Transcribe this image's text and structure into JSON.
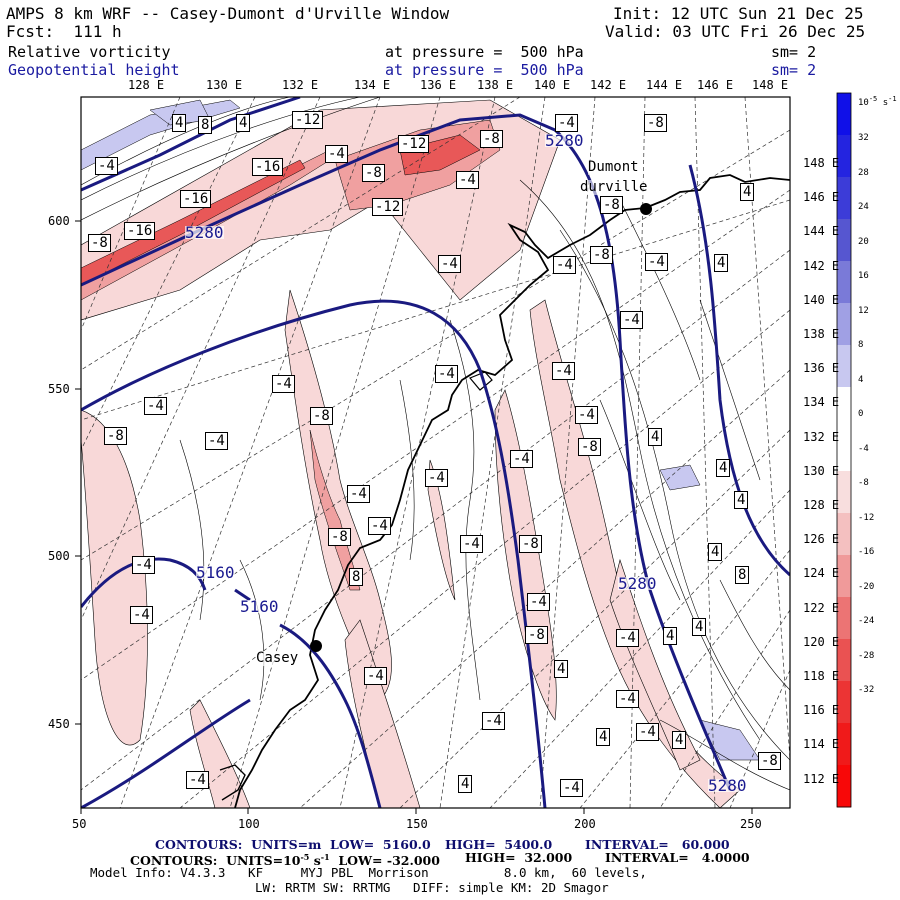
{
  "header": {
    "title": "AMPS 8 km WRF -- Casey-Dumont d'Urville Window",
    "init": "Init: 12 UTC Sun 21 Dec 25",
    "forecast": "Fcst:  111 h",
    "valid": "Valid: 03 UTC Fri 26 Dec 25",
    "field1": {
      "name": "Relative vorticity",
      "level": "at pressure =  500 hPa",
      "smoothing": "sm= 2"
    },
    "field2": {
      "name": "Geopotential height",
      "level": "at pressure =  500 hPa",
      "smoothing": "sm= 2"
    }
  },
  "map": {
    "lon_labels_top": [
      "128 E",
      "130 E",
      "132 E",
      "134 E",
      "136 E",
      "138 E",
      "140 E",
      "142 E",
      "144 E",
      "146 E",
      "148 E"
    ],
    "lat_labels_right": [
      "148 E",
      "146 E",
      "144 E",
      "142 E",
      "140 E",
      "138 E",
      "136 E",
      "134 E",
      "132 E",
      "130 E",
      "128 E",
      "126 E",
      "124 E",
      "122 E",
      "120 E",
      "118 E",
      "116 E",
      "114 E",
      "112 E"
    ],
    "x_axis": [
      "50",
      "100",
      "150",
      "200",
      "250"
    ],
    "y_axis": [
      "600",
      "550",
      "500",
      "450"
    ],
    "stations": [
      {
        "name": "Dumont\ndurville",
        "label1": "Dumont",
        "label2": "durville"
      },
      {
        "name": "Casey",
        "label1": "Casey"
      }
    ],
    "height_contour_labels": [
      "5280",
      "5280",
      "5280",
      "5280",
      "5160",
      "5160"
    ],
    "vorticity_labels": [
      "-4",
      "-8",
      "-12",
      "-16",
      "4",
      "8"
    ]
  },
  "colorbar": {
    "unit": "10-5 s-1",
    "ticks": [
      "32",
      "28",
      "24",
      "20",
      "16",
      "12",
      "8",
      "4",
      "0",
      "-4",
      "-8",
      "-12",
      "-16",
      "-20",
      "-24",
      "-28",
      "-32"
    ],
    "colors": [
      "#1010e8",
      "#2424e0",
      "#3c3cd8",
      "#5656d0",
      "#7a7ad8",
      "#a0a0e4",
      "#c8c8f0",
      "#ffffff",
      "#ffffff",
      "#f8dede",
      "#f4c0c0",
      "#f09a9a",
      "#ec7474",
      "#ea5252",
      "#ec3434",
      "#f01a1a",
      "#f80808"
    ]
  },
  "footer": {
    "line1": {
      "a": "CONTOURS:  UNITS=m  LOW=  5160.0",
      "b": "HIGH=  5400.0",
      "c": "INTERVAL=   60.000"
    },
    "line2": {
      "a": "CONTOURS:  UNITS=10",
      "a_sup": "-5",
      "a2": " s",
      "a2_sup": "-1",
      "a3": "  LOW= -32.000",
      "b": "HIGH=  32.000",
      "c": "INTERVAL=   4.0000"
    },
    "line3": "Model Info: V4.3.3   KF     MYJ PBL  Morrison          8.0 km,  60 levels,",
    "line4": "LW: RRTM SW: RRTMG   DIFF: simple KM: 2D Smagor"
  }
}
